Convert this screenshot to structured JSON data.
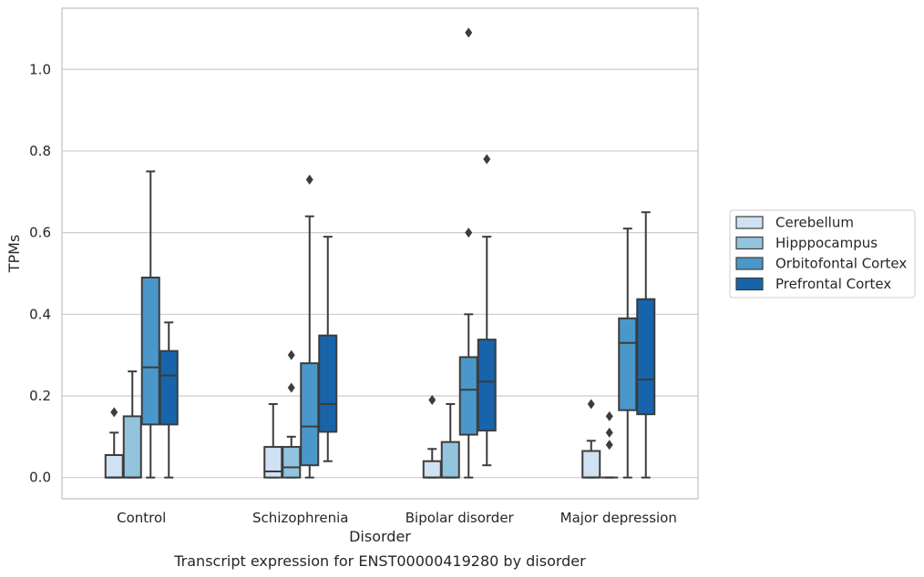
{
  "caption": "Transcript expression for ENST00000419280 by disorder",
  "colors": {
    "Cerebellum": "#cfe1f2",
    "Hipppocampus": "#93c4de",
    "Orbitofontal Cortex": "#4a98c9",
    "Prefrontal Cortex": "#1764ab"
  },
  "chart_data": {
    "type": "box",
    "title": "",
    "xlabel": "Disorder",
    "ylabel": "TPMs",
    "ylim": [
      -0.052,
      1.15
    ],
    "yticks": [
      0.0,
      0.2,
      0.4,
      0.6,
      0.8,
      1.0
    ],
    "ytick_labels": [
      "0.0",
      "0.2",
      "0.4",
      "0.6",
      "0.8",
      "1.0"
    ],
    "grid": "horizontal",
    "legend_position": "right",
    "categories": [
      "Control",
      "Schizophrenia",
      "Bipolar disorder",
      "Major depression"
    ],
    "series": [
      {
        "name": "Cerebellum",
        "boxes": [
          {
            "min": 0.0,
            "q1": 0.0,
            "median": 0.0,
            "q3": 0.055,
            "max": 0.11,
            "outliers": [
              0.16
            ]
          },
          {
            "min": 0.0,
            "q1": 0.0,
            "median": 0.015,
            "q3": 0.075,
            "max": 0.18,
            "outliers": []
          },
          {
            "min": 0.0,
            "q1": 0.0,
            "median": 0.0,
            "q3": 0.04,
            "max": 0.07,
            "outliers": [
              0.19
            ]
          },
          {
            "min": 0.0,
            "q1": 0.0,
            "median": 0.0,
            "q3": 0.065,
            "max": 0.09,
            "outliers": [
              0.18
            ]
          }
        ]
      },
      {
        "name": "Hipppocampus",
        "boxes": [
          {
            "min": 0.0,
            "q1": 0.0,
            "median": 0.0,
            "q3": 0.15,
            "max": 0.26,
            "outliers": []
          },
          {
            "min": 0.0,
            "q1": 0.0,
            "median": 0.025,
            "q3": 0.075,
            "max": 0.1,
            "outliers": [
              0.22,
              0.3
            ]
          },
          {
            "min": 0.0,
            "q1": 0.0,
            "median": 0.0,
            "q3": 0.087,
            "max": 0.18,
            "outliers": []
          },
          {
            "min": 0.0,
            "q1": 0.0,
            "median": 0.0,
            "q3": 0.0,
            "max": 0.0,
            "outliers": [
              0.08,
              0.11,
              0.15
            ]
          }
        ]
      },
      {
        "name": "Orbitofontal Cortex",
        "boxes": [
          {
            "min": 0.0,
            "q1": 0.13,
            "median": 0.27,
            "q3": 0.49,
            "max": 0.75,
            "outliers": []
          },
          {
            "min": 0.0,
            "q1": 0.03,
            "median": 0.125,
            "q3": 0.28,
            "max": 0.64,
            "outliers": [
              0.73
            ]
          },
          {
            "min": 0.0,
            "q1": 0.105,
            "median": 0.215,
            "q3": 0.295,
            "max": 0.4,
            "outliers": [
              0.6,
              1.09
            ]
          },
          {
            "min": 0.0,
            "q1": 0.165,
            "median": 0.33,
            "q3": 0.39,
            "max": 0.61,
            "outliers": []
          }
        ]
      },
      {
        "name": "Prefrontal Cortex",
        "boxes": [
          {
            "min": 0.0,
            "q1": 0.13,
            "median": 0.25,
            "q3": 0.31,
            "max": 0.38,
            "outliers": []
          },
          {
            "min": 0.04,
            "q1": 0.112,
            "median": 0.18,
            "q3": 0.348,
            "max": 0.59,
            "outliers": []
          },
          {
            "min": 0.03,
            "q1": 0.115,
            "median": 0.235,
            "q3": 0.338,
            "max": 0.59,
            "outliers": [
              0.78
            ]
          },
          {
            "min": 0.0,
            "q1": 0.155,
            "median": 0.24,
            "q3": 0.437,
            "max": 0.65,
            "outliers": []
          }
        ]
      }
    ]
  }
}
